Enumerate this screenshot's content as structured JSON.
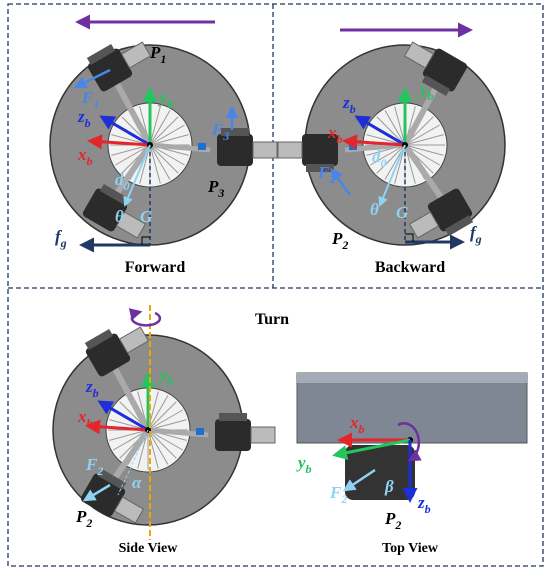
{
  "panels": [
    {
      "caption": "Forward",
      "labels": [
        {
          "main": "P",
          "sub": "1"
        },
        {
          "main": "F",
          "sub": "1"
        },
        {
          "main": "y",
          "sub": "b"
        },
        {
          "main": "z",
          "sub": "b"
        },
        {
          "main": "x",
          "sub": "b"
        },
        {
          "main": "F",
          "sub": "3"
        },
        {
          "main": "d",
          "sub": "0"
        },
        {
          "main": "P",
          "sub": "3"
        },
        {
          "main": "θ",
          "sub": ""
        },
        {
          "main": "G",
          "sub": ""
        },
        {
          "main": "f",
          "sub": "g"
        }
      ]
    },
    {
      "caption": "Backward",
      "labels": [
        {
          "main": "y",
          "sub": "b"
        },
        {
          "main": "z",
          "sub": "b"
        },
        {
          "main": "x",
          "sub": "b"
        },
        {
          "main": "F",
          "sub": "2"
        },
        {
          "main": "d",
          "sub": "0"
        },
        {
          "main": "θ",
          "sub": ""
        },
        {
          "main": "G",
          "sub": ""
        },
        {
          "main": "P",
          "sub": "2"
        },
        {
          "main": "f",
          "sub": "g"
        }
      ]
    },
    {
      "caption": "Side View",
      "labels": [
        {
          "main": "y",
          "sub": "b"
        },
        {
          "main": "z",
          "sub": "b"
        },
        {
          "main": "x",
          "sub": "b"
        },
        {
          "main": "F",
          "sub": "2"
        },
        {
          "main": "α",
          "sub": ""
        },
        {
          "main": "P",
          "sub": "2"
        }
      ]
    },
    {
      "caption": "Top View",
      "labels": [
        {
          "main": "x",
          "sub": "b"
        },
        {
          "main": "y",
          "sub": "b"
        },
        {
          "main": "F",
          "sub": "2"
        },
        {
          "main": "β",
          "sub": ""
        },
        {
          "main": "P",
          "sub": "2"
        },
        {
          "main": "z",
          "sub": "b"
        }
      ]
    }
  ],
  "turn": {
    "title": "Turn"
  }
}
